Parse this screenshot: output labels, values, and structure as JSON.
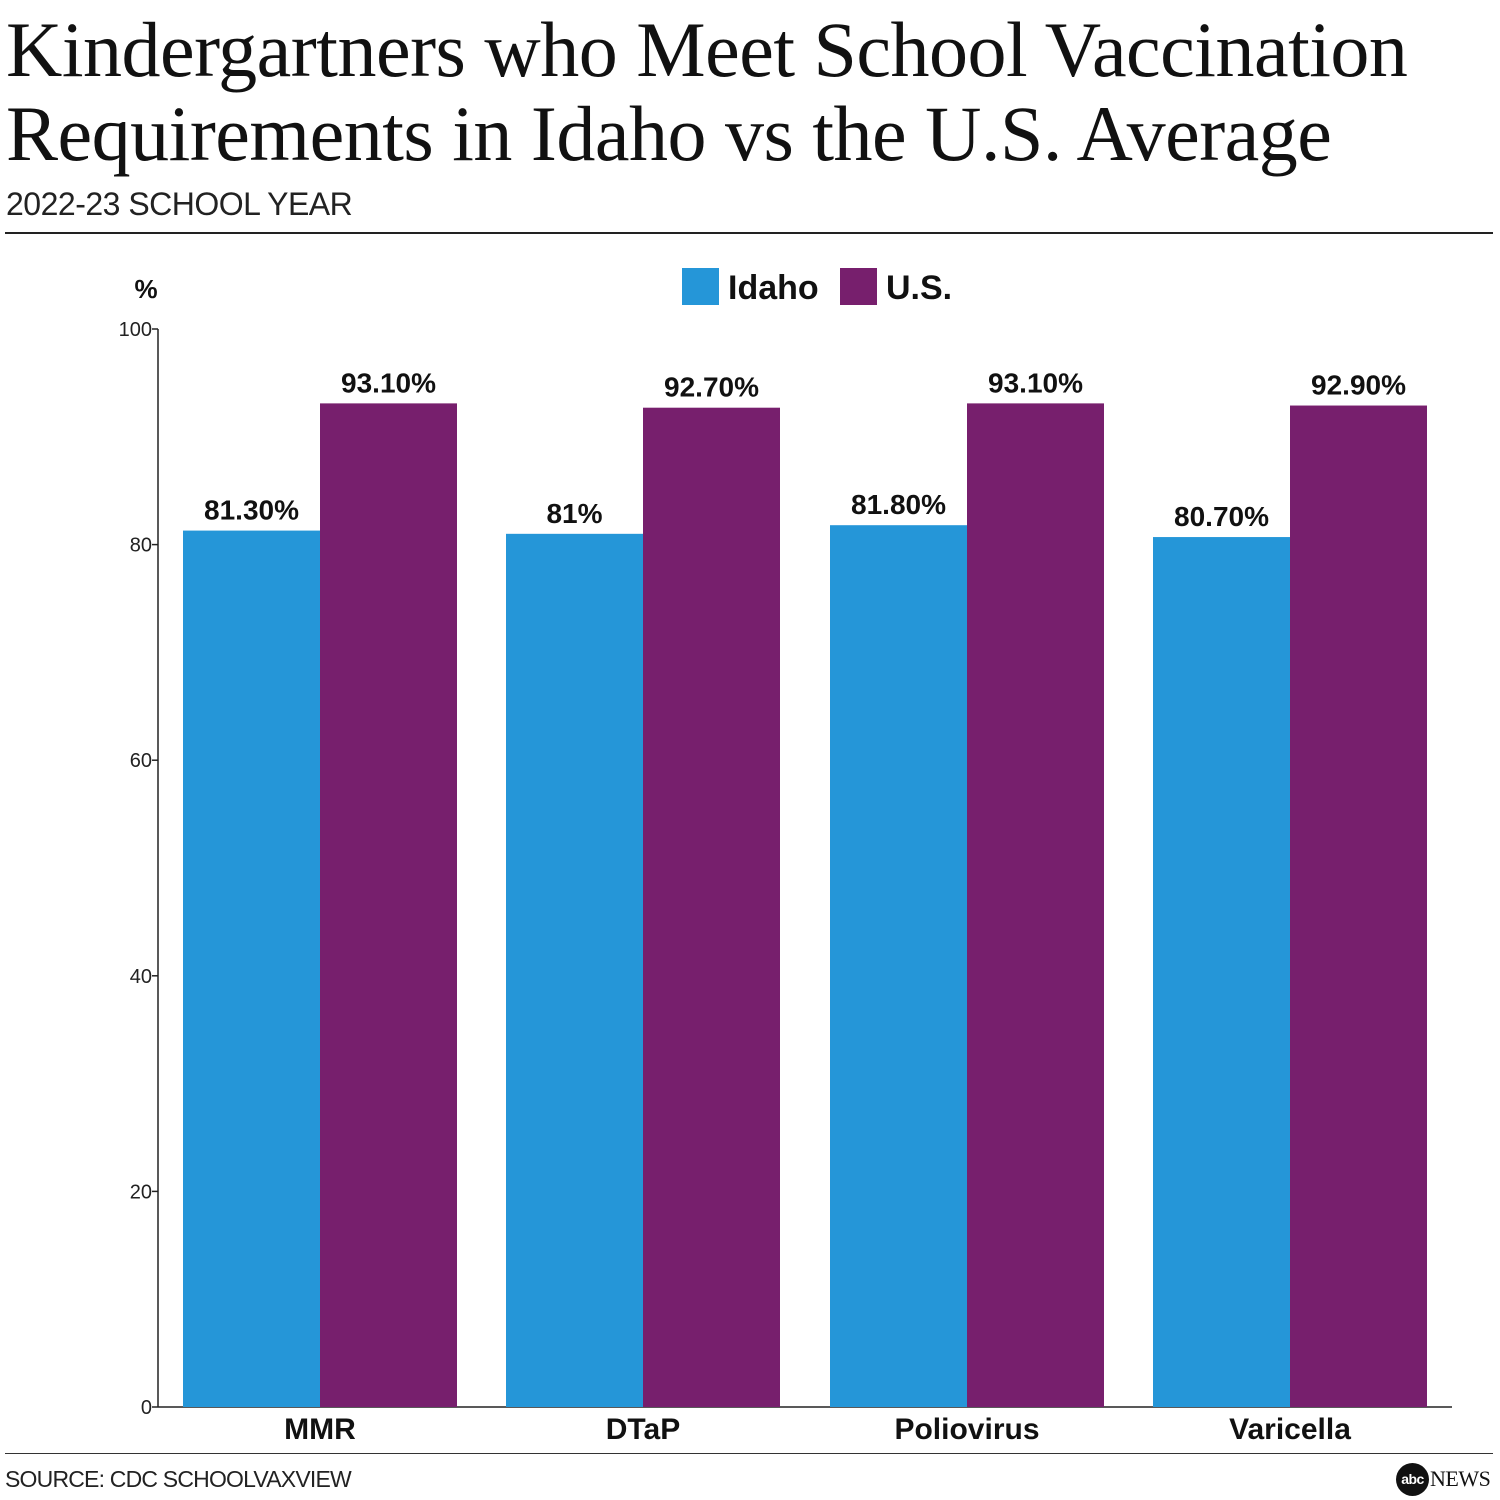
{
  "header": {
    "title_line1": "Kindergartners who Meet School Vaccination",
    "title_line2": "Requirements in Idaho vs the U.S. Average",
    "subtitle": "2022-23 SCHOOL YEAR"
  },
  "footer": {
    "source": "SOURCE: CDC SCHOOLVAXVIEW",
    "logo_mark": "abc",
    "logo_text": "NEWS"
  },
  "chart_data": {
    "type": "bar",
    "ylabel": "%",
    "ylim": [
      0,
      100
    ],
    "yticks": [
      0,
      20,
      40,
      60,
      80,
      100
    ],
    "categories": [
      "MMR",
      "DTaP",
      "Poliovirus",
      "Varicella"
    ],
    "series": [
      {
        "name": "Idaho",
        "color": "#2596d8",
        "values": [
          81.3,
          81.0,
          81.8,
          80.7
        ],
        "labels": [
          "81.30%",
          "81%",
          "81.80%",
          "80.70%"
        ]
      },
      {
        "name": "U.S.",
        "color": "#771f6d",
        "values": [
          93.1,
          92.7,
          93.1,
          92.9
        ],
        "labels": [
          "93.10%",
          "92.70%",
          "93.10%",
          "92.90%"
        ]
      }
    ],
    "legend_position": "top-center",
    "grid": false
  }
}
